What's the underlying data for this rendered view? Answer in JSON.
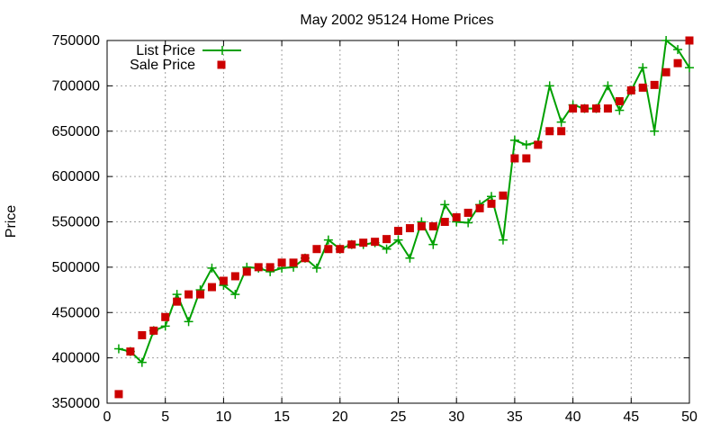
{
  "chart_data": {
    "type": "line",
    "title": "May 2002 95124 Home Prices",
    "xlabel": "",
    "ylabel": "Price",
    "xlim": [
      0,
      50
    ],
    "ylim": [
      350000,
      750000
    ],
    "xticks": [
      0,
      5,
      10,
      15,
      20,
      25,
      30,
      35,
      40,
      45,
      50
    ],
    "yticks": [
      350000,
      400000,
      450000,
      500000,
      550000,
      600000,
      650000,
      700000,
      750000
    ],
    "xtick_labels": [
      "0",
      "5",
      "10",
      "15",
      "20",
      "25",
      "30",
      "35",
      "40",
      "45",
      "50"
    ],
    "ytick_labels": [
      "350000",
      "400000",
      "450000",
      "500000",
      "550000",
      "600000",
      "650000",
      "700000",
      "750000"
    ],
    "grid": true,
    "legend_position": "top-left",
    "x": [
      1,
      2,
      3,
      4,
      5,
      6,
      7,
      8,
      9,
      10,
      11,
      12,
      13,
      14,
      15,
      16,
      17,
      18,
      19,
      20,
      21,
      22,
      23,
      24,
      25,
      26,
      27,
      28,
      29,
      30,
      31,
      32,
      33,
      34,
      35,
      36,
      37,
      38,
      39,
      40,
      41,
      42,
      43,
      44,
      45,
      46,
      47,
      48,
      49,
      50
    ],
    "series": [
      {
        "name": "List Price",
        "style": "line-plus",
        "color": "#00a000",
        "values": [
          410000,
          407000,
          395000,
          430000,
          435000,
          470000,
          440000,
          475000,
          499000,
          480000,
          470000,
          500000,
          499000,
          495000,
          499000,
          500000,
          510000,
          499000,
          530000,
          520000,
          525000,
          525000,
          527000,
          520000,
          530000,
          510000,
          550000,
          525000,
          569000,
          550000,
          549000,
          569000,
          578000,
          530000,
          640000,
          635000,
          638000,
          700000,
          660000,
          679000,
          675000,
          675000,
          700000,
          673000,
          695000,
          720000,
          650000,
          750000,
          740000,
          720000
        ]
      },
      {
        "name": "Sale Price",
        "style": "square-markers",
        "color": "#cc0000",
        "values": [
          360000,
          407000,
          425000,
          430000,
          445000,
          462000,
          470000,
          470000,
          478000,
          485000,
          490000,
          495000,
          500000,
          500000,
          505000,
          505000,
          510000,
          520000,
          520000,
          520000,
          525000,
          527000,
          528000,
          531000,
          540000,
          543000,
          545000,
          545000,
          550000,
          555000,
          560000,
          565000,
          570000,
          579000,
          620000,
          620000,
          635000,
          650000,
          650000,
          675000,
          675000,
          675000,
          675000,
          683000,
          695000,
          698000,
          701000,
          715000,
          725000,
          750000
        ]
      }
    ]
  }
}
